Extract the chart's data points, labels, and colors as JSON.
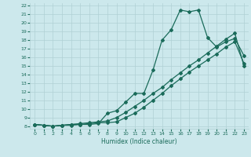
{
  "xlabel": "Humidex (Indice chaleur)",
  "bg_color": "#cce8ec",
  "line_color": "#1a6b5a",
  "grid_color": "#b0d0d4",
  "xlim": [
    -0.5,
    23.5
  ],
  "ylim": [
    7.7,
    22.3
  ],
  "xticks": [
    0,
    1,
    2,
    3,
    4,
    5,
    6,
    7,
    8,
    9,
    10,
    11,
    12,
    13,
    14,
    15,
    16,
    17,
    18,
    19,
    20,
    21,
    22,
    23
  ],
  "yticks": [
    8,
    9,
    10,
    11,
    12,
    13,
    14,
    15,
    16,
    17,
    18,
    19,
    20,
    21,
    22
  ],
  "line1_x": [
    0,
    1,
    2,
    3,
    4,
    5,
    6,
    7,
    8,
    9,
    10,
    11,
    12,
    13,
    14,
    15,
    16,
    17,
    18,
    19,
    20,
    21,
    22,
    23
  ],
  "line1_y": [
    8.2,
    8.1,
    8.0,
    8.1,
    8.1,
    8.2,
    8.2,
    8.3,
    9.5,
    9.8,
    10.8,
    11.8,
    11.8,
    14.5,
    18.0,
    19.2,
    21.5,
    21.3,
    21.5,
    18.3,
    17.2,
    17.8,
    18.2,
    16.2
  ],
  "line2_x": [
    0,
    1,
    2,
    3,
    4,
    5,
    6,
    7,
    8,
    9,
    10,
    11,
    12,
    13,
    14,
    15,
    16,
    17,
    18,
    19,
    20,
    21,
    22,
    23
  ],
  "line2_y": [
    8.2,
    8.1,
    8.0,
    8.1,
    8.2,
    8.3,
    8.4,
    8.5,
    8.6,
    9.0,
    9.6,
    10.3,
    11.0,
    11.8,
    12.5,
    13.4,
    14.2,
    15.0,
    15.7,
    16.5,
    17.3,
    18.1,
    18.8,
    15.0
  ],
  "line3_x": [
    0,
    1,
    2,
    3,
    4,
    5,
    6,
    7,
    8,
    9,
    10,
    11,
    12,
    13,
    14,
    15,
    16,
    17,
    18,
    19,
    20,
    21,
    22,
    23
  ],
  "line3_y": [
    8.2,
    8.1,
    8.0,
    8.1,
    8.2,
    8.2,
    8.3,
    8.4,
    8.4,
    8.5,
    9.0,
    9.5,
    10.2,
    11.0,
    11.8,
    12.7,
    13.5,
    14.3,
    15.0,
    15.7,
    16.4,
    17.2,
    17.8,
    15.3
  ]
}
